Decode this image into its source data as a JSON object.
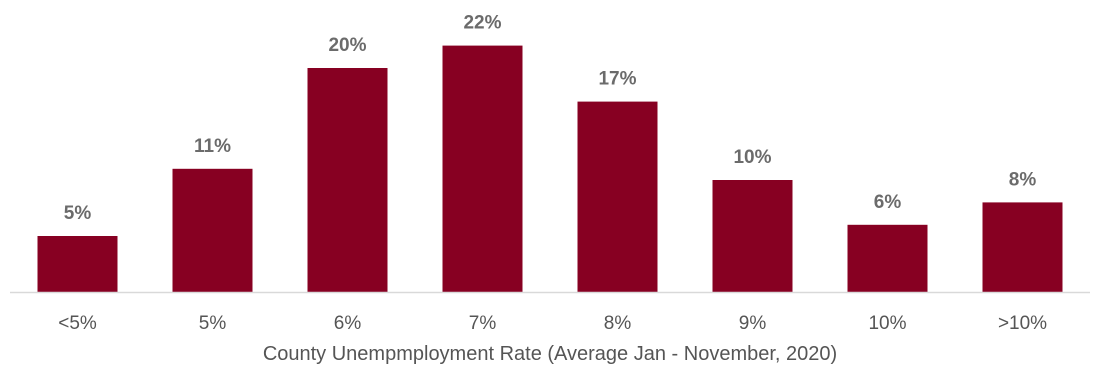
{
  "chart_data": {
    "type": "bar",
    "categories": [
      "<5%",
      "5%",
      "6%",
      "7%",
      "8%",
      "9%",
      "10%",
      ">10%"
    ],
    "values": [
      5,
      11,
      20,
      22,
      17,
      10,
      6,
      8
    ],
    "data_labels": [
      "5%",
      "11%",
      "20%",
      "22%",
      "17%",
      "10%",
      "6%",
      "8%"
    ],
    "xlabel": "County Unempmployment Rate (Average Jan - November, 2020)",
    "ylabel": "",
    "ylim": [
      0,
      22.5
    ],
    "grid": false,
    "legend": "none",
    "colors": {
      "bar": "#870022",
      "axis": "#d9d9d9",
      "label": "#6b6b6b",
      "tick": "#555555"
    }
  }
}
